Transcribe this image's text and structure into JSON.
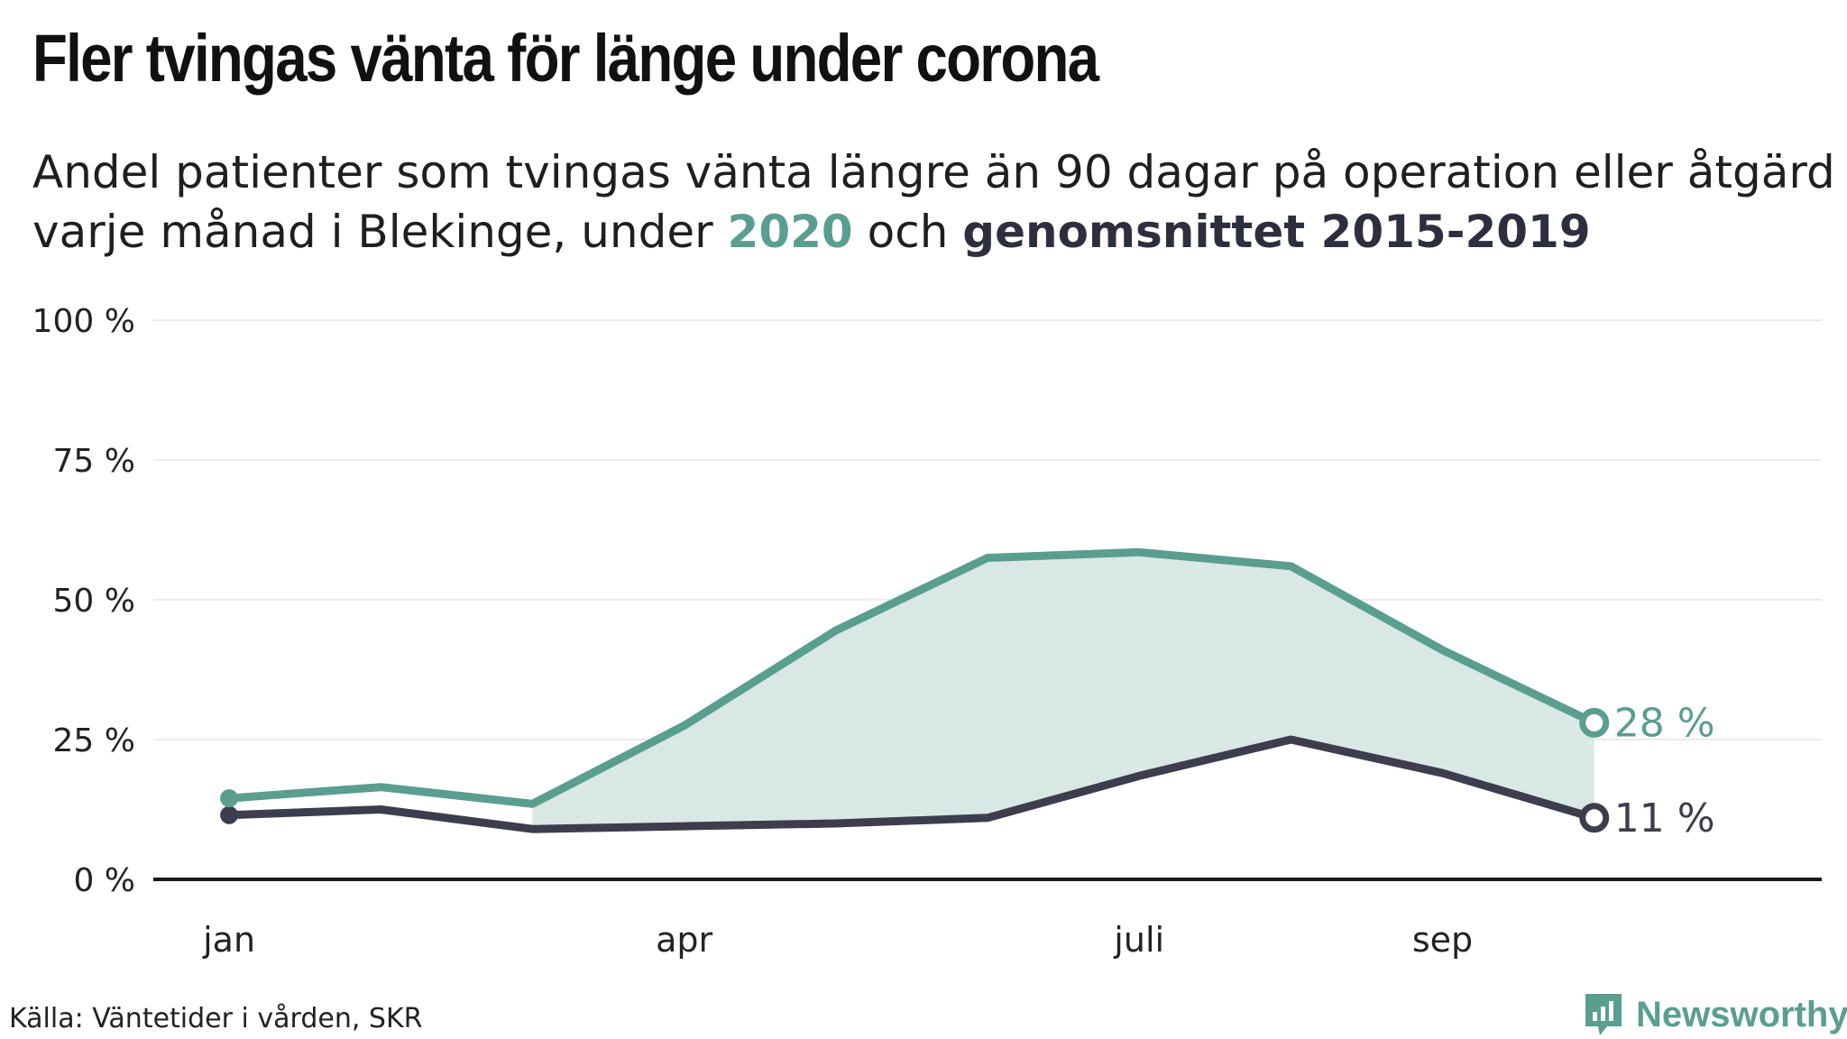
{
  "title": "Fler tvingas vänta för länge under corona",
  "subtitle": {
    "prefix": "Andel patienter som tvingas vänta längre än 90 dagar på operation eller åtgärd varje månad i Blekinge, under ",
    "highlight_2020": "2020",
    "middle": " och ",
    "highlight_avg": "genomsnittet 2015-2019"
  },
  "colors": {
    "series_2020": "#5a9e90",
    "series_avg": "#3d3d4d",
    "fill": "#d9e8e5",
    "grid": "#e6e6e6",
    "axis": "#1a1a1a"
  },
  "chart_data": {
    "type": "line",
    "x": [
      1,
      2,
      3,
      4,
      5,
      6,
      7,
      8,
      9,
      10
    ],
    "xlim": [
      0.5,
      11.5
    ],
    "xticks": [
      {
        "value": 1,
        "label": "jan"
      },
      {
        "value": 4,
        "label": "apr"
      },
      {
        "value": 7,
        "label": "juli"
      },
      {
        "value": 9,
        "label": "sep"
      }
    ],
    "ylim": [
      0,
      100
    ],
    "yticks": [
      {
        "value": 0,
        "label": "0 %"
      },
      {
        "value": 25,
        "label": "25 %"
      },
      {
        "value": 50,
        "label": "50 %"
      },
      {
        "value": 75,
        "label": "75 %"
      },
      {
        "value": 100,
        "label": "100 %"
      }
    ],
    "grid": true,
    "fill_between": {
      "from_index": 2,
      "to_index": 9
    },
    "series": [
      {
        "name": "2020",
        "key": "s2020",
        "values": [
          14.5,
          16.5,
          13.5,
          27.5,
          44.5,
          57.5,
          58.5,
          56,
          41,
          28
        ],
        "end_label": "28 %"
      },
      {
        "name": "genomsnittet 2015-2019",
        "key": "avg",
        "values": [
          11.5,
          12.5,
          9,
          9.5,
          10,
          11,
          18.5,
          25,
          19,
          11
        ],
        "end_label": "11 %"
      }
    ]
  },
  "source": "Källa: Väntetider i vården, SKR",
  "logo": {
    "text": "Newsworthy",
    "icon": "newsworthy-bar-chart-icon"
  }
}
